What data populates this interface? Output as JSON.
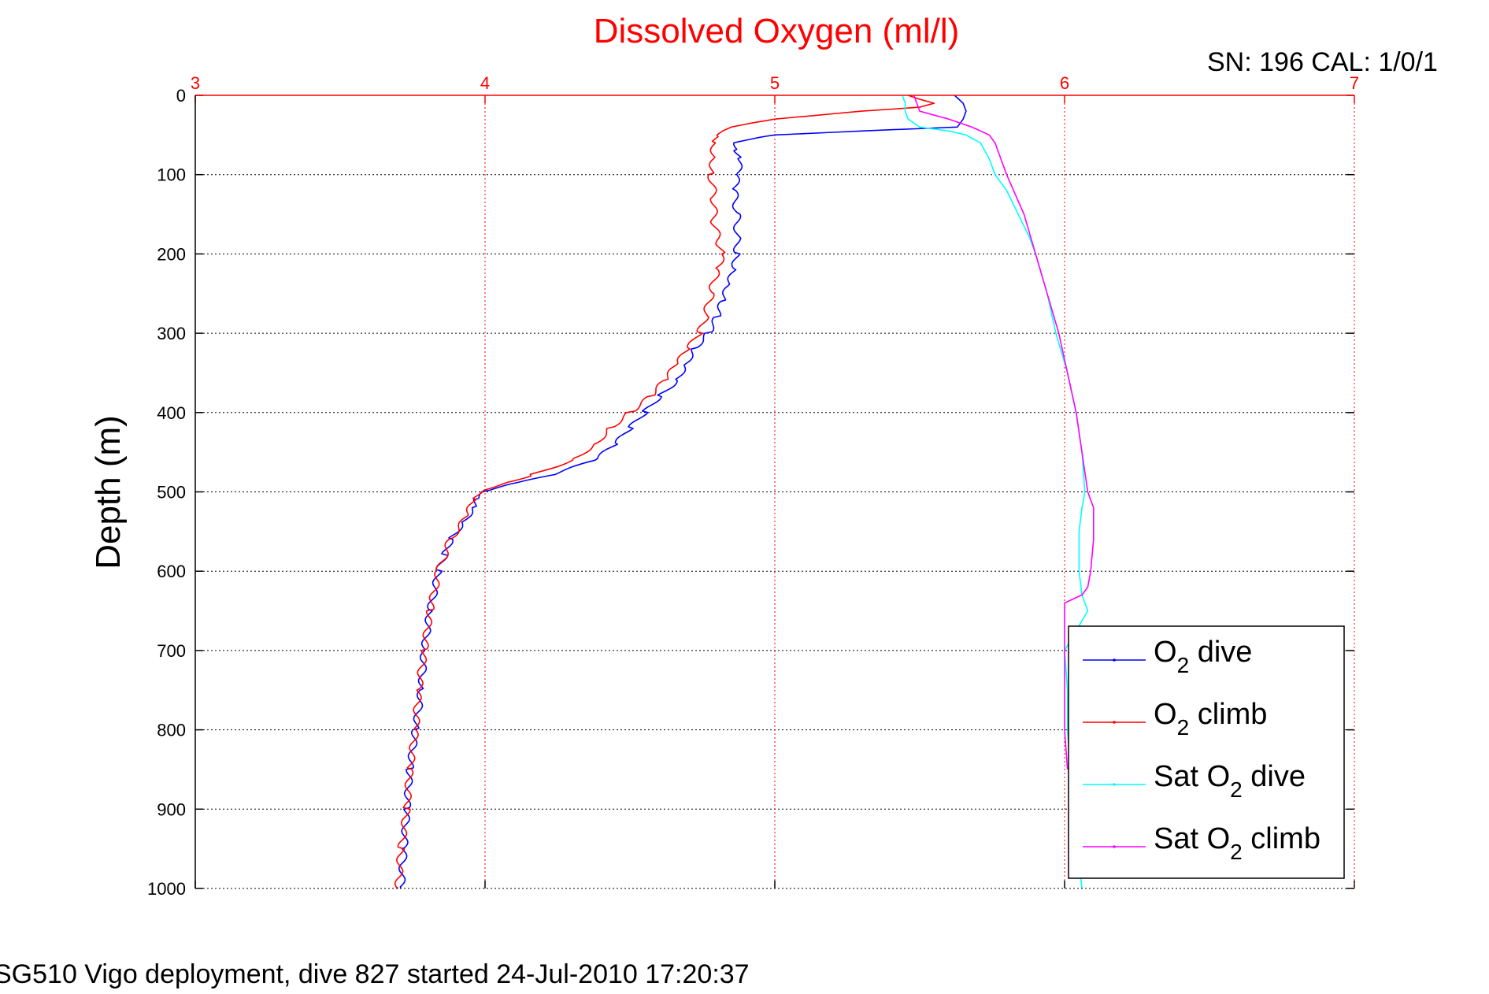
{
  "chart_data": {
    "type": "line",
    "title": "Dissolved Oxygen (ml/l)",
    "title_color": "#ff0000",
    "corner_text": "SN: 196  CAL: 1/0/1",
    "footer_text": "SG510 Vigo deployment, dive 827 started 24-Jul-2010 17:20:37",
    "ylabel": "Depth (m)",
    "xlabel": "",
    "x_axis_position": "top",
    "y_reversed": true,
    "xlim": [
      3,
      7
    ],
    "ylim": [
      0,
      1000
    ],
    "xticks": [
      "3",
      "4",
      "5",
      "6",
      "7"
    ],
    "yticks": [
      "0",
      "100",
      "200",
      "300",
      "400",
      "500",
      "600",
      "700",
      "800",
      "900",
      "1000"
    ],
    "grid": true,
    "legend_position": "bottom-right",
    "colors": {
      "axis_x": "#ff0000",
      "axis_y": "#000000",
      "grid_x": "#ff0000",
      "grid_y": "#000000"
    },
    "legend": [
      {
        "base": "O",
        "sub": "2",
        "suffix": " dive",
        "prefix": "",
        "color": "#0000ff"
      },
      {
        "base": "O",
        "sub": "2",
        "suffix": " climb",
        "prefix": "",
        "color": "#ff0000"
      },
      {
        "base": "O",
        "sub": "2",
        "suffix": " dive",
        "prefix": "Sat ",
        "color": "#00ffff"
      },
      {
        "base": "O",
        "sub": "2",
        "suffix": " climb",
        "prefix": "Sat ",
        "color": "#ff00ff"
      }
    ],
    "series": [
      {
        "name": "O2 dive",
        "color": "#0000ff",
        "depth": [
          0,
          10,
          20,
          30,
          40,
          45,
          50,
          55,
          60,
          70,
          80,
          100,
          120,
          150,
          180,
          200,
          220,
          240,
          260,
          280,
          300,
          320,
          340,
          360,
          380,
          400,
          420,
          440,
          460,
          480,
          490,
          500,
          510,
          520,
          540,
          560,
          580,
          600,
          650,
          700,
          750,
          800,
          850,
          900,
          950,
          1000
        ],
        "x": [
          5.62,
          5.65,
          5.66,
          5.65,
          5.63,
          5.3,
          5.0,
          4.93,
          4.87,
          4.87,
          4.88,
          4.87,
          4.86,
          4.87,
          4.87,
          4.87,
          4.86,
          4.84,
          4.82,
          4.8,
          4.77,
          4.72,
          4.69,
          4.66,
          4.6,
          4.55,
          4.5,
          4.45,
          4.38,
          4.22,
          4.1,
          4.0,
          3.97,
          3.96,
          3.92,
          3.88,
          3.86,
          3.84,
          3.81,
          3.79,
          3.78,
          3.76,
          3.74,
          3.73,
          3.72,
          3.71
        ]
      },
      {
        "name": "O2 climb",
        "color": "#ff0000",
        "depth": [
          0,
          5,
          10,
          15,
          20,
          25,
          30,
          35,
          40,
          45,
          50,
          60,
          80,
          100,
          130,
          160,
          190,
          200,
          220,
          250,
          280,
          300,
          320,
          340,
          360,
          380,
          400,
          420,
          440,
          460,
          480,
          490,
          500,
          510,
          530,
          560,
          600,
          650,
          700,
          750,
          800,
          850,
          900,
          950,
          1000
        ],
        "x": [
          5.46,
          5.5,
          5.55,
          5.5,
          5.3,
          5.15,
          5.0,
          4.92,
          4.85,
          4.82,
          4.8,
          4.79,
          4.79,
          4.78,
          4.79,
          4.79,
          4.81,
          4.82,
          4.8,
          4.78,
          4.76,
          4.74,
          4.7,
          4.66,
          4.62,
          4.57,
          4.5,
          4.43,
          4.38,
          4.3,
          4.15,
          4.05,
          3.98,
          3.96,
          3.94,
          3.88,
          3.84,
          3.81,
          3.79,
          3.77,
          3.76,
          3.74,
          3.73,
          3.71,
          3.7
        ]
      },
      {
        "name": "Sat O2 dive",
        "color": "#00ffff",
        "depth": [
          0,
          10,
          20,
          30,
          40,
          45,
          50,
          60,
          80,
          100,
          120,
          150,
          180,
          200,
          250,
          300,
          350,
          400,
          450,
          500,
          520,
          550,
          600,
          630,
          650,
          700,
          750,
          800,
          900,
          1000
        ],
        "x": [
          5.44,
          5.45,
          5.45,
          5.46,
          5.5,
          5.6,
          5.66,
          5.71,
          5.74,
          5.76,
          5.8,
          5.84,
          5.88,
          5.9,
          5.94,
          5.97,
          6.01,
          6.04,
          6.06,
          6.07,
          6.06,
          6.05,
          6.05,
          6.06,
          6.08,
          6.0,
          6.01,
          6.01,
          6.03,
          6.06
        ]
      },
      {
        "name": "Sat O2 climb",
        "color": "#ff00ff",
        "depth": [
          0,
          10,
          20,
          25,
          30,
          35,
          40,
          45,
          50,
          60,
          80,
          100,
          150,
          200,
          250,
          300,
          350,
          400,
          450,
          500,
          520,
          540,
          560,
          600,
          620,
          630,
          640,
          660,
          700,
          750,
          800,
          850
        ],
        "x": [
          5.48,
          5.49,
          5.5,
          5.55,
          5.6,
          5.64,
          5.68,
          5.71,
          5.74,
          5.76,
          5.78,
          5.8,
          5.86,
          5.9,
          5.94,
          5.98,
          6.01,
          6.04,
          6.06,
          6.08,
          6.1,
          6.1,
          6.1,
          6.09,
          6.08,
          6.06,
          6.0,
          6.0,
          6.0,
          6.0,
          6.0,
          6.01
        ]
      }
    ]
  }
}
